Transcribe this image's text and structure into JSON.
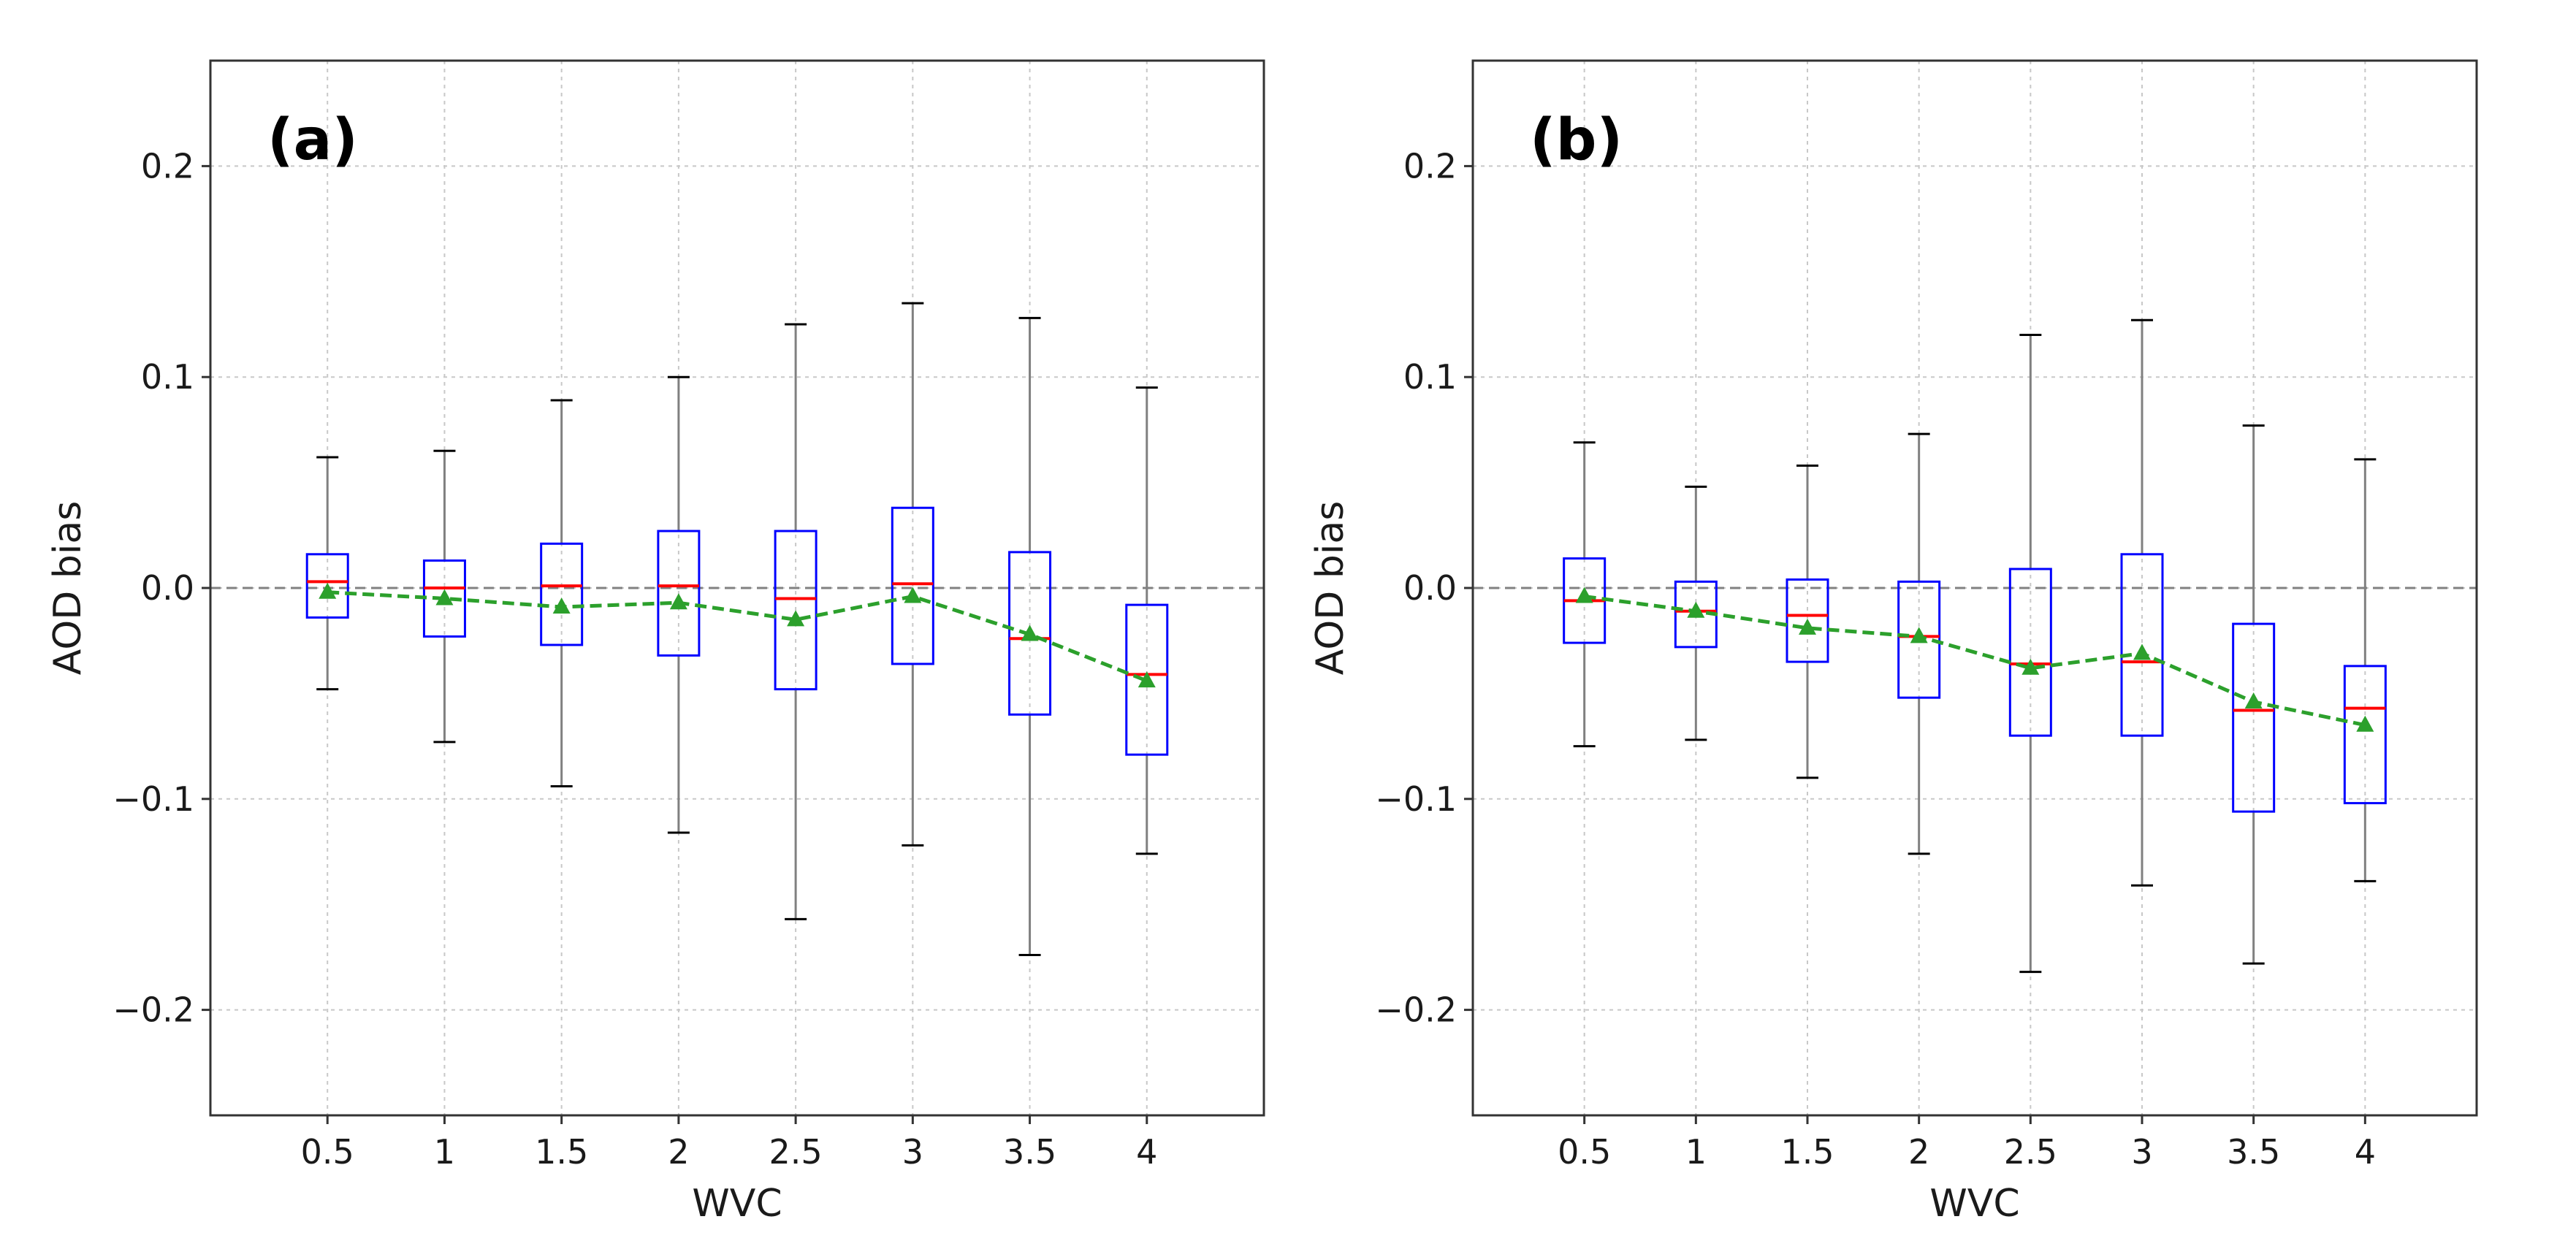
{
  "chart_data": [
    {
      "type": "box",
      "panel_label": "(a)",
      "xlabel": "WVC",
      "ylabel": "AOD bias",
      "ylim": [
        -0.25,
        0.25
      ],
      "yticks": [
        -0.2,
        -0.1,
        0.0,
        0.1,
        0.2
      ],
      "ytick_labels": [
        "−0.2",
        "−0.1",
        "0.0",
        "0.1",
        "0.2"
      ],
      "categories": [
        "0.5",
        "1",
        "1.5",
        "2",
        "2.5",
        "3",
        "3.5",
        "4"
      ],
      "grid": true,
      "reference_line": 0.0,
      "colors": {
        "box": "#0000ff",
        "median": "#ff0000",
        "whisker": "#808080",
        "cap": "#000000",
        "mean": "#2ca02c",
        "mean_line": "#2ca02c",
        "grid": "#c8c8c8",
        "zero_line": "#808080"
      },
      "series": [
        {
          "name": "0.5",
          "whisker_low": -0.048,
          "q1": -0.014,
          "median": 0.003,
          "q3": 0.016,
          "whisker_high": 0.062,
          "mean": -0.002
        },
        {
          "name": "1",
          "whisker_low": -0.073,
          "q1": -0.023,
          "median": 0.0,
          "q3": 0.013,
          "whisker_high": 0.065,
          "mean": -0.005
        },
        {
          "name": "1.5",
          "whisker_low": -0.094,
          "q1": -0.027,
          "median": 0.001,
          "q3": 0.021,
          "whisker_high": 0.089,
          "mean": -0.009
        },
        {
          "name": "2",
          "whisker_low": -0.116,
          "q1": -0.032,
          "median": 0.001,
          "q3": 0.027,
          "whisker_high": 0.1,
          "mean": -0.007
        },
        {
          "name": "2.5",
          "whisker_low": -0.157,
          "q1": -0.048,
          "median": -0.005,
          "q3": 0.027,
          "whisker_high": 0.125,
          "mean": -0.015
        },
        {
          "name": "3",
          "whisker_low": -0.122,
          "q1": -0.036,
          "median": 0.002,
          "q3": 0.038,
          "whisker_high": 0.135,
          "mean": -0.004
        },
        {
          "name": "3.5",
          "whisker_low": -0.174,
          "q1": -0.06,
          "median": -0.024,
          "q3": 0.017,
          "whisker_high": 0.128,
          "mean": -0.022
        },
        {
          "name": "4",
          "whisker_low": -0.126,
          "q1": -0.079,
          "median": -0.041,
          "q3": -0.008,
          "whisker_high": 0.095,
          "mean": -0.044
        }
      ]
    },
    {
      "type": "box",
      "panel_label": "(b)",
      "xlabel": "WVC",
      "ylabel": "AOD bias",
      "ylim": [
        -0.25,
        0.25
      ],
      "yticks": [
        -0.2,
        -0.1,
        0.0,
        0.1,
        0.2
      ],
      "ytick_labels": [
        "−0.2",
        "−0.1",
        "0.0",
        "0.1",
        "0.2"
      ],
      "categories": [
        "0.5",
        "1",
        "1.5",
        "2",
        "2.5",
        "3",
        "3.5",
        "4"
      ],
      "grid": true,
      "reference_line": 0.0,
      "colors": {
        "box": "#0000ff",
        "median": "#ff0000",
        "whisker": "#808080",
        "cap": "#000000",
        "mean": "#2ca02c",
        "mean_line": "#2ca02c",
        "grid": "#c8c8c8",
        "zero_line": "#808080"
      },
      "series": [
        {
          "name": "0.5",
          "whisker_low": -0.075,
          "q1": -0.026,
          "median": -0.006,
          "q3": 0.014,
          "whisker_high": 0.069,
          "mean": -0.004
        },
        {
          "name": "1",
          "whisker_low": -0.072,
          "q1": -0.028,
          "median": -0.011,
          "q3": 0.003,
          "whisker_high": 0.048,
          "mean": -0.011
        },
        {
          "name": "1.5",
          "whisker_low": -0.09,
          "q1": -0.035,
          "median": -0.013,
          "q3": 0.004,
          "whisker_high": 0.058,
          "mean": -0.019
        },
        {
          "name": "2",
          "whisker_low": -0.126,
          "q1": -0.052,
          "median": -0.023,
          "q3": 0.003,
          "whisker_high": 0.073,
          "mean": -0.023
        },
        {
          "name": "2.5",
          "whisker_low": -0.182,
          "q1": -0.07,
          "median": -0.036,
          "q3": 0.009,
          "whisker_high": 0.12,
          "mean": -0.038
        },
        {
          "name": "3",
          "whisker_low": -0.141,
          "q1": -0.07,
          "median": -0.035,
          "q3": 0.016,
          "whisker_high": 0.127,
          "mean": -0.031
        },
        {
          "name": "3.5",
          "whisker_low": -0.178,
          "q1": -0.106,
          "median": -0.058,
          "q3": -0.017,
          "whisker_high": 0.077,
          "mean": -0.054
        },
        {
          "name": "4",
          "whisker_low": -0.139,
          "q1": -0.102,
          "median": -0.057,
          "q3": -0.037,
          "whisker_high": 0.061,
          "mean": -0.065
        }
      ]
    }
  ]
}
